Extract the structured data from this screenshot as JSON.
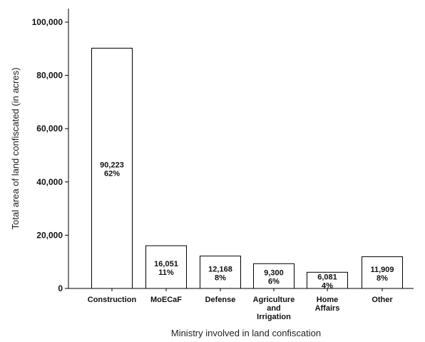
{
  "chart_data": {
    "type": "bar",
    "categories": [
      [
        "Construction"
      ],
      [
        "MoECaF"
      ],
      [
        "Defense"
      ],
      [
        "Agriculture",
        "and",
        "Irrigation"
      ],
      [
        "Home",
        "Affairs"
      ],
      [
        "Other"
      ]
    ],
    "values": [
      90223,
      16051,
      12168,
      9300,
      6081,
      11909
    ],
    "value_labels": [
      "90,223",
      "16,051",
      "12,168",
      "9,300",
      "6,081",
      "11,909"
    ],
    "percent_labels": [
      "62%",
      "11%",
      "8%",
      "6%",
      "4%",
      "8%"
    ],
    "xlabel": "Ministry involved in land confiscation",
    "ylabel": "Total area of land confiscated (in acres)",
    "ylim": [
      0,
      100000
    ],
    "yticks": [
      0,
      20000,
      40000,
      60000,
      80000,
      100000
    ],
    "ytick_labels": [
      "0",
      "20,000",
      "40,000",
      "60,000",
      "80,000",
      "100,000"
    ],
    "grid": false,
    "colors": {
      "bar_fill": "#ffffff",
      "bar_stroke": "#000000",
      "axis": "#000000"
    }
  }
}
